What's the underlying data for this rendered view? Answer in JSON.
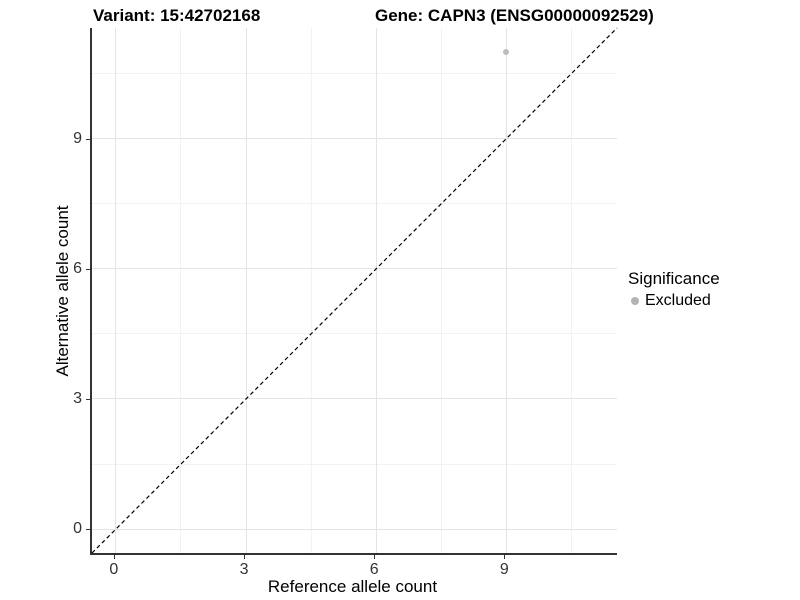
{
  "titles": {
    "variant": "Variant: 15:42702168",
    "gene": "Gene: CAPN3 (ENSG00000092529)"
  },
  "chart_data": {
    "type": "scatter",
    "title": "Variant: 15:42702168 / Gene: CAPN3 (ENSG00000092529)",
    "xlabel": "Reference allele count",
    "ylabel": "Alternative allele count",
    "xlim": [
      -0.55,
      11.55
    ],
    "ylim": [
      -0.55,
      11.55
    ],
    "x_ticks": [
      0,
      3,
      6,
      9
    ],
    "y_ticks": [
      0,
      3,
      6,
      9
    ],
    "x_minor_ticks": [
      1.5,
      4.5,
      7.5,
      10.5
    ],
    "y_minor_ticks": [
      1.5,
      4.5,
      7.5,
      10.5
    ],
    "grid": true,
    "series": [
      {
        "name": "Excluded",
        "color": "#bdbdbd",
        "points": [
          {
            "x": 9,
            "y": 11
          }
        ]
      }
    ],
    "reference_line": {
      "slope": 1,
      "intercept": 0,
      "style": "dashed",
      "color": "#000000"
    },
    "legend": {
      "position": "right",
      "title": "Significance",
      "items": [
        {
          "label": "Excluded",
          "color": "#b3b3b3"
        }
      ]
    }
  },
  "colors": {
    "background": "#ffffff",
    "axis_line": "#333333",
    "grid_major": "#e4e4e4",
    "grid_minor": "#f2f2f2",
    "tick_label": "#333333",
    "title_text": "#000000"
  }
}
